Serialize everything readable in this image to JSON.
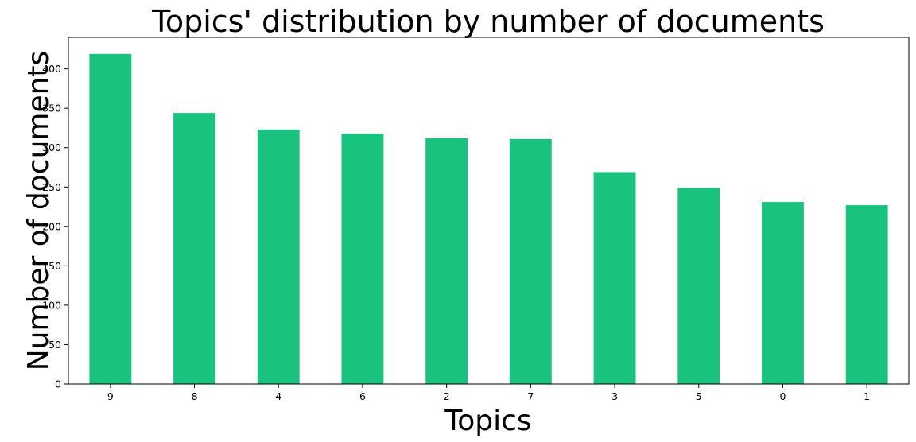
{
  "chart_data": {
    "type": "bar",
    "title": "Topics' distribution by number of documents",
    "xlabel": "Topics",
    "ylabel": "Number of documents",
    "categories": [
      "9",
      "8",
      "4",
      "6",
      "2",
      "7",
      "3",
      "5",
      "0",
      "1"
    ],
    "values": [
      419,
      344,
      323,
      318,
      312,
      311,
      269,
      249,
      231,
      227
    ],
    "ylim": [
      0,
      440
    ],
    "yticks": [
      0,
      50,
      100,
      150,
      200,
      250,
      300,
      350,
      400
    ],
    "grid": false,
    "legend": "none",
    "bar_color": "#19c37d"
  }
}
